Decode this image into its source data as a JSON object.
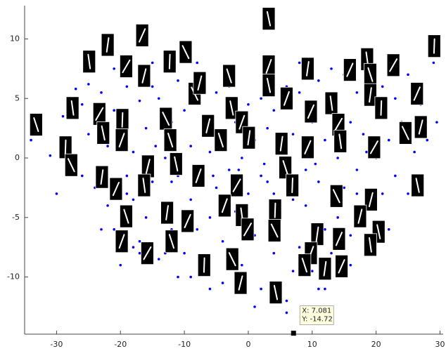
{
  "chart_data": {
    "type": "scatter",
    "xlim": [
      -35,
      30.5
    ],
    "ylim": [
      -14.8,
      12.8
    ],
    "xticks": [
      -30,
      -20,
      -10,
      0,
      10,
      20,
      30
    ],
    "yticks": [
      -10,
      -5,
      0,
      5,
      10
    ],
    "grid": false,
    "series": [
      {
        "color": "#0000ff",
        "marker": "dot",
        "x": [
          -34,
          -31,
          -29,
          -28,
          -27,
          -26,
          -25,
          -25,
          -24,
          -23,
          -22,
          -22,
          -21,
          -21,
          -20,
          -20,
          -19,
          -19,
          -18,
          -18,
          -17,
          -17,
          -16,
          -16,
          -15,
          -15,
          -14,
          -14,
          -13,
          -13,
          -12,
          -12,
          -11,
          -11,
          -10,
          -10,
          -9,
          -9,
          -8,
          -8,
          -7,
          -7,
          -6,
          -6,
          -5,
          -5,
          -4,
          -4,
          -3,
          -3,
          -2,
          -2,
          -1,
          -1,
          0,
          0,
          1,
          1,
          2,
          2,
          3,
          3,
          4,
          4,
          5,
          5,
          6,
          6,
          7,
          7,
          8,
          8,
          9,
          9,
          10,
          10,
          11,
          11,
          12,
          12,
          13,
          13,
          14,
          14,
          15,
          15,
          16,
          16,
          17,
          17,
          18,
          18,
          19,
          19,
          20,
          20,
          21,
          21,
          22,
          22,
          23,
          23,
          24,
          25,
          25,
          26,
          27,
          28,
          29,
          29.5,
          -30,
          -26,
          -23,
          -18,
          -13,
          -9,
          -4,
          1,
          6,
          11,
          16,
          20,
          -17,
          -11,
          -6,
          2,
          7,
          12,
          17,
          -21,
          -15,
          -8,
          -3,
          3,
          8,
          13,
          -19,
          -12,
          4,
          9,
          0.5,
          -1.5,
          2.5,
          5.5,
          -5.5,
          10.5,
          14.5,
          -10.5,
          -14.5,
          18.5
        ],
        "y": [
          1.5,
          0.2,
          3.5,
          -1,
          5.8,
          4.5,
          6.2,
          2,
          -2.5,
          5.5,
          -4,
          1,
          7.5,
          -6,
          -9,
          3,
          -1.5,
          6,
          -3.5,
          0.5,
          4.8,
          -7,
          2.5,
          -5,
          8,
          -2,
          5,
          -8.5,
          0,
          -4,
          3,
          -6,
          6.5,
          -1.5,
          4,
          -8,
          1,
          -3.5,
          7,
          -6,
          3.5,
          -9.5,
          0.5,
          -5,
          5.5,
          -2.5,
          2,
          -7,
          6,
          -1,
          3,
          -4.5,
          0,
          -9,
          4.5,
          -3,
          1.5,
          -6.5,
          5,
          -11,
          2.5,
          -2,
          -8,
          4,
          0,
          -5,
          6,
          -12,
          2,
          -3.5,
          5.5,
          -7.5,
          0.5,
          -4,
          3,
          -9.5,
          6.5,
          -2,
          1.5,
          -6,
          4,
          -8,
          0,
          -5,
          7,
          -2.5,
          3,
          -6.5,
          5.5,
          -1,
          2,
          -4.5,
          8.5,
          -8,
          4,
          0,
          6,
          -3,
          1.5,
          -6,
          5,
          -1.5,
          3,
          7,
          -3,
          0.5,
          4.5,
          1.5,
          8,
          3,
          -3,
          -1.5,
          -6,
          -7.5,
          -8,
          -10,
          -10.5,
          -12.5,
          -13,
          -11,
          -9,
          -7,
          -8,
          -10,
          -11,
          -1.5,
          -9.5,
          -11,
          -3,
          4,
          6,
          8,
          7.5,
          8.5,
          8,
          7.5,
          -3,
          -2,
          -3,
          -1,
          2,
          -1,
          -0.5,
          1,
          -1.5,
          -0.5,
          1,
          0,
          1,
          0.5
        ]
      },
      {
        "color": "#000000",
        "marker": "thumbnail",
        "x": [
          -33.2,
          -22.0,
          -16.6,
          -24.9,
          -19.1,
          -12.3,
          -9.8,
          -16.3,
          3.2,
          3.2,
          -3.0,
          9.3,
          15.9,
          18.6,
          22.7,
          29.1,
          -8.4,
          -7.6,
          3.2,
          6.0,
          19.1,
          19.1,
          26.4,
          -27.5,
          -23.3,
          -19.7,
          -12.9,
          -6.3,
          -2.6,
          -1.0,
          -4.3,
          0.1,
          9.8,
          13.0,
          14.1,
          20.8,
          24.6,
          27.0,
          -22.7,
          -19.8,
          -12.2,
          5.2,
          9.3,
          14.4,
          19.7,
          -28.6,
          -27.7,
          -15.7,
          -11.3,
          -7.8,
          5.8,
          -22.9,
          -20.7,
          -16.3,
          -1.8,
          6.9,
          13.8,
          19.2,
          26.5,
          -3.7,
          -19.1,
          -12.7,
          -9.5,
          -1.0,
          -0.1,
          4.2,
          4.1,
          17.5,
          20.4,
          -19.8,
          -12.0,
          10.8,
          14.2,
          19.1,
          -15.8,
          -6.9,
          -2.5,
          -1.2,
          4.3,
          9.8,
          8.8,
          12.0,
          14.6
        ],
        "y": [
          2.8,
          9.5,
          10.3,
          8.1,
          7.7,
          8.1,
          8.9,
          6.9,
          11.7,
          7.7,
          6.9,
          7.5,
          7.4,
          8.3,
          7.8,
          9.4,
          5.4,
          6.3,
          6.1,
          5.0,
          7.0,
          5.3,
          5.4,
          4.2,
          3.7,
          3.2,
          3.3,
          2.7,
          4.2,
          3.0,
          1.5,
          1.7,
          3.9,
          4.6,
          2.8,
          4.2,
          2.1,
          2.6,
          2.1,
          1.5,
          1.5,
          1.2,
          0.9,
          1.4,
          0.9,
          0.9,
          -0.6,
          -0.7,
          -0.5,
          -1.5,
          -0.8,
          -1.6,
          -2.6,
          -2.3,
          -2.3,
          -2.3,
          -3.2,
          -3.5,
          -2.3,
          -4.0,
          -4.9,
          -4.6,
          -5.3,
          -4.8,
          -6.0,
          -4.4,
          -6.1,
          -4.9,
          -6.2,
          -7.0,
          -7.0,
          -6.4,
          -6.8,
          -7.3,
          -8.0,
          -9.0,
          -8.5,
          -10.5,
          -11.3,
          -8.0,
          -9.0,
          -9.3,
          -9.1
        ]
      }
    ],
    "datatip": {
      "x": 7.081,
      "y": -14.72,
      "labels": [
        "X: 7.081",
        "Y: -14.72"
      ]
    }
  }
}
